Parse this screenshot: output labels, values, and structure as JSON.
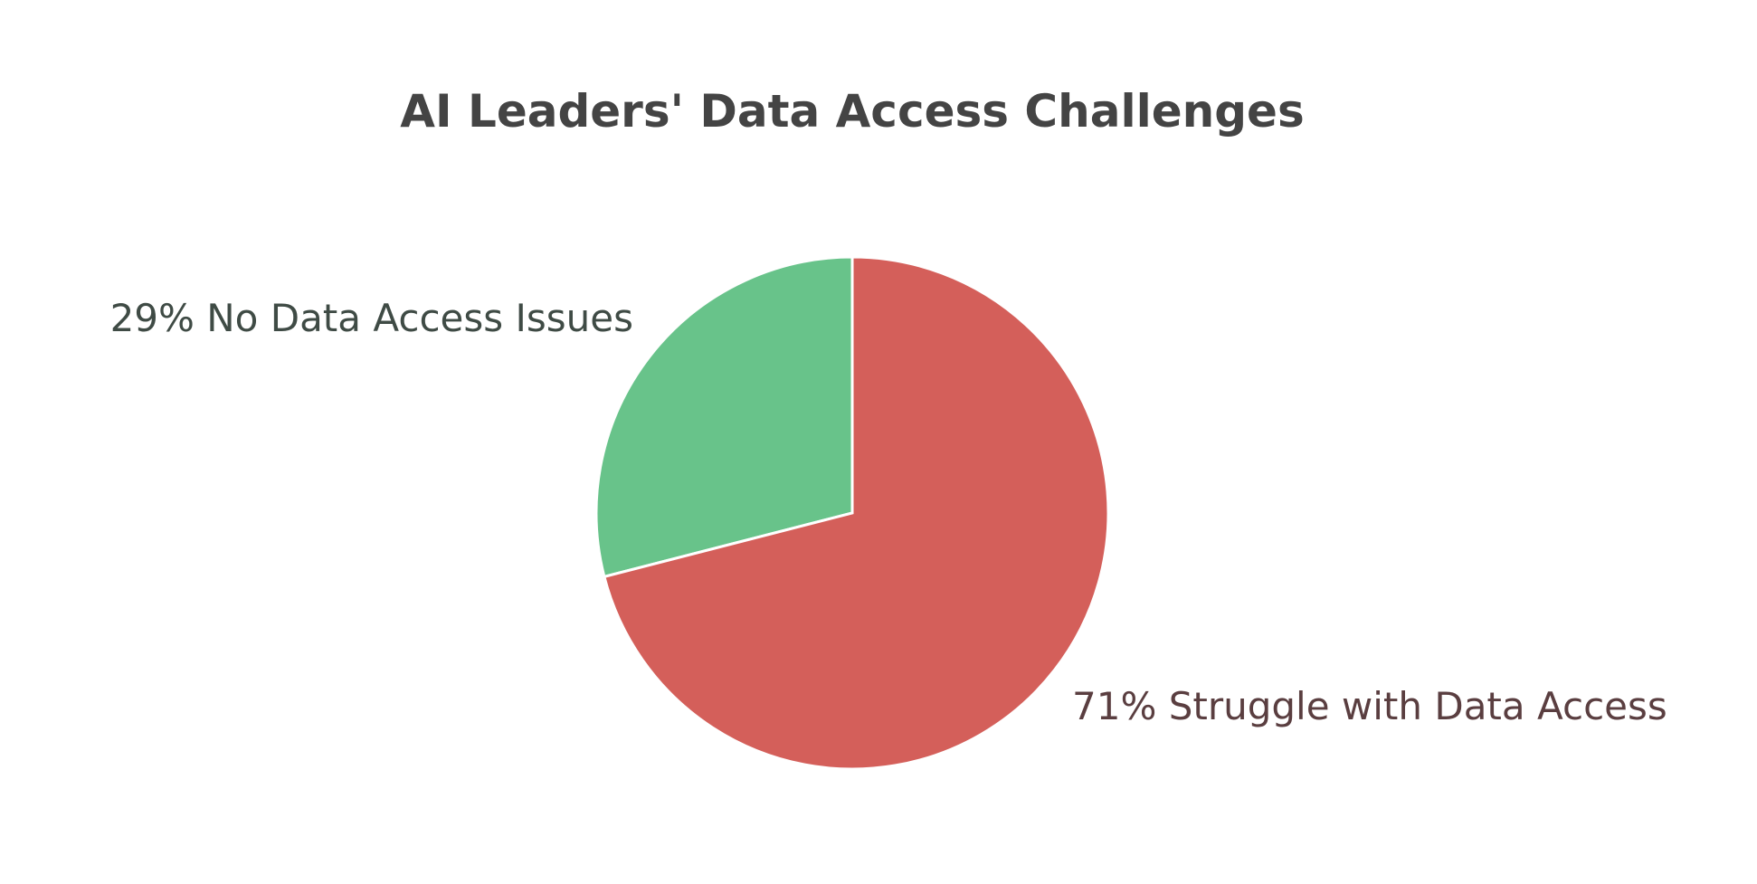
{
  "chart_data": {
    "type": "pie",
    "title": "AI Leaders' Data Access Challenges",
    "slices": [
      {
        "label": "No Data Access Issues",
        "value": 29,
        "display": "29% No Data Access Issues",
        "color": "#68C38A",
        "label_color": "#3F4B45"
      },
      {
        "label": "Struggle with Data Access",
        "value": 71,
        "display": "71% Struggle with Data Access",
        "color": "#D45F5A",
        "label_color": "#5A3E40"
      }
    ],
    "start": "12 o'clock",
    "direction": "counterclockwise from top for first slice"
  }
}
